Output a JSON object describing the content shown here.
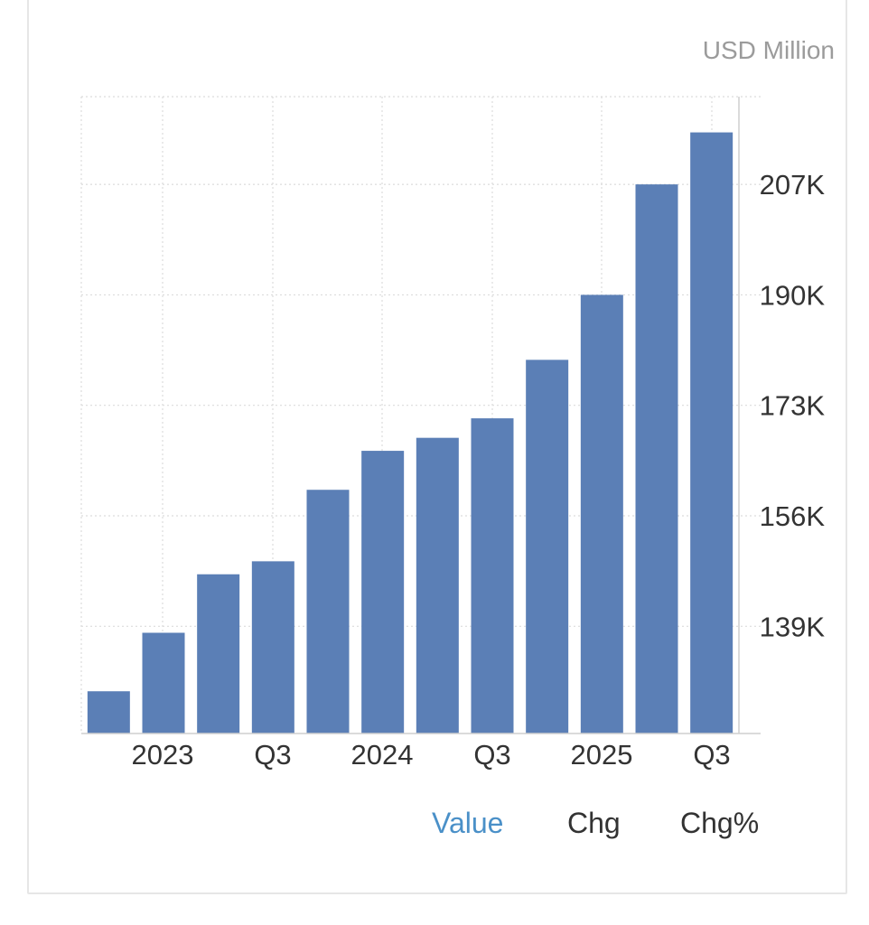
{
  "unit_label": "USD Million",
  "tabs": [
    {
      "label": "Value",
      "active": true
    },
    {
      "label": "Chg",
      "active": false
    },
    {
      "label": "Chg%",
      "active": false
    }
  ],
  "colors": {
    "bar": "#5b7fb6",
    "grid": "#dcdcdc",
    "axis_text": "#333333",
    "active_tab": "#4a90c8"
  },
  "chart_data": {
    "type": "bar",
    "title": "",
    "xlabel": "",
    "ylabel": "",
    "categories": [
      "2023 Q1",
      "2023 Q2",
      "2023 Q3",
      "2023 Q4",
      "2024 Q1",
      "2024 Q2",
      "2024 Q3",
      "2024 Q4",
      "2025 Q1",
      "2025 Q2",
      "2025 Q3",
      "2025 Q4"
    ],
    "x_tick_labels": [
      "2023",
      "Q3",
      "2024",
      "Q3",
      "2025",
      "Q3"
    ],
    "values": [
      129,
      138,
      147,
      149,
      160,
      166,
      168,
      171,
      180,
      190,
      207,
      215
    ],
    "y_ticks": [
      139,
      156,
      173,
      190,
      207
    ],
    "y_tick_labels": [
      "139K",
      "156K",
      "173K",
      "190K",
      "207K"
    ],
    "ylim": [
      122.5,
      220.5
    ],
    "y_axis_side": "right",
    "grid": true
  }
}
